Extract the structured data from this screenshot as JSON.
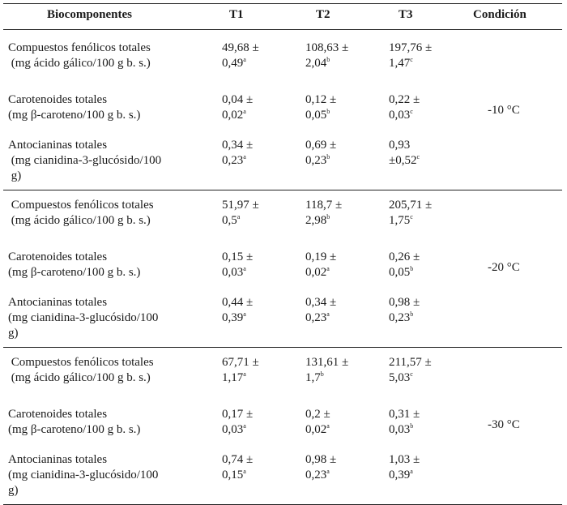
{
  "headers": [
    "Biocomponentes",
    "T1",
    "T2",
    "T3",
    "Condición"
  ],
  "groups": [
    {
      "condition": "-10 °C",
      "rows": [
        {
          "bio": [
            "Compuestos fenólicos totales",
            " (mg ácido gálico/100 g b. s.)"
          ],
          "t1": [
            "49,68 ±",
            "0,49",
            "a"
          ],
          "t2": [
            "108,63 ±",
            "2,04",
            "b"
          ],
          "t3": [
            "197,76 ±",
            "1,47",
            "c"
          ]
        },
        {
          "bio": [
            "Carotenoides totales",
            "(mg β-caroteno/100 g b. s.)"
          ],
          "t1": [
            "0,04 ±",
            "0,02",
            "a"
          ],
          "t2": [
            "0,12 ±",
            "0,05",
            "b"
          ],
          "t3": [
            "0,22 ±",
            "0,03",
            "c"
          ]
        },
        {
          "bio": [
            "Antocianinas totales",
            " (mg cianidina-3-glucósido/100",
            " g)"
          ],
          "t1": [
            "0,34 ±",
            "0,23",
            "a"
          ],
          "t2": [
            "0,69 ±",
            "0,23",
            "b"
          ],
          "t3": [
            "0,93",
            "±0,52",
            "c"
          ]
        }
      ]
    },
    {
      "condition": "-20 °C",
      "rows": [
        {
          "bio": [
            " Compuestos fenólicos totales",
            " (mg ácido gálico/100 g b. s.)"
          ],
          "t1": [
            "51,97 ±",
            "0,5",
            "a"
          ],
          "t2": [
            "118,7 ±",
            "2,98",
            "b"
          ],
          "t3": [
            "205,71 ±",
            "1,75",
            "c"
          ]
        },
        {
          "bio": [
            "Carotenoides totales",
            "(mg β-caroteno/100 g b. s.)"
          ],
          "t1": [
            "0,15 ±",
            "0,03",
            "a"
          ],
          "t2": [
            "0,19 ±",
            "0,02",
            "a"
          ],
          "t3": [
            "0,26 ±",
            "0,05",
            "b"
          ]
        },
        {
          "bio": [
            "Antocianinas totales",
            "(mg cianidina-3-glucósido/100",
            "g)"
          ],
          "t1": [
            "0,44 ±",
            "0,39",
            "a"
          ],
          "t2": [
            "0,34 ±",
            "0,23",
            "a"
          ],
          "t3": [
            "0,98 ±",
            "0,23",
            "b"
          ]
        }
      ]
    },
    {
      "condition": "-30 °C",
      "rows": [
        {
          "bio": [
            " Compuestos fenólicos totales",
            " (mg ácido gálico/100 g b. s.)"
          ],
          "t1": [
            "67,71 ±",
            "1,17",
            "a"
          ],
          "t2": [
            "131,61 ±",
            "1,7",
            "b"
          ],
          "t3": [
            "211,57 ±",
            "5,03",
            "c"
          ]
        },
        {
          "bio": [
            "Carotenoides totales",
            "(mg β-caroteno/100 g b. s.)"
          ],
          "t1": [
            "0,17 ±",
            "0,03",
            "a"
          ],
          "t2": [
            "0,2 ±",
            "0,02",
            "a"
          ],
          "t3": [
            "0,31 ±",
            "0,03",
            "b"
          ]
        },
        {
          "bio": [
            "Antocianinas totales",
            "(mg cianidina-3-glucósido/100",
            "g)"
          ],
          "t1": [
            "0,74 ±",
            "0,15",
            "a"
          ],
          "t2": [
            "0,98 ±",
            "0,23",
            "a"
          ],
          "t3": [
            "1,03 ±",
            "0,39",
            "a"
          ]
        }
      ]
    }
  ]
}
